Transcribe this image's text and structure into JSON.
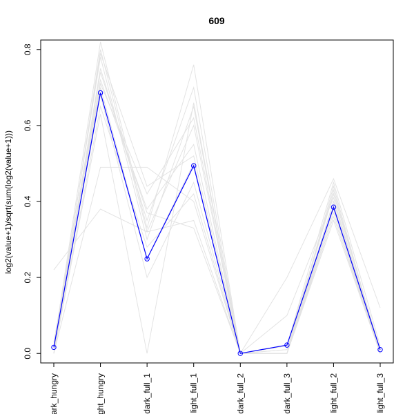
{
  "chart_data": {
    "type": "line",
    "title": "609",
    "xlabel": "",
    "ylabel": "log2(value+1)/sqrt(sum(log2(value+1)))",
    "categories": [
      "dark_hungry",
      "light_hungry",
      "dark_full_1",
      "light_full_1",
      "dark_full_2",
      "dark_full_3",
      "light_full_2",
      "light_full_3"
    ],
    "ylim": [
      -0.025,
      0.825
    ],
    "yticks": [
      0.0,
      0.2,
      0.4,
      0.6,
      0.8
    ],
    "ytick_labels": [
      "0.0",
      "0.2",
      "0.4",
      "0.6",
      "0.8"
    ],
    "grid": false,
    "highlight": {
      "color": "#0000ff",
      "values": [
        0.016,
        0.686,
        0.249,
        0.494,
        0.0,
        0.022,
        0.385,
        0.01
      ]
    },
    "background_color": "#e3e3e3",
    "background_series": [
      [
        0.0,
        0.8,
        0.32,
        0.6,
        0.0,
        0.0,
        0.4,
        0.0
      ],
      [
        0.02,
        0.78,
        0.3,
        0.65,
        0.0,
        0.01,
        0.42,
        0.01
      ],
      [
        0.01,
        0.75,
        0.35,
        0.7,
        0.0,
        0.0,
        0.38,
        0.0
      ],
      [
        0.03,
        0.72,
        0.38,
        0.55,
        0.0,
        0.02,
        0.45,
        0.02
      ],
      [
        0.0,
        0.7,
        0.25,
        0.5,
        0.0,
        0.0,
        0.36,
        0.0
      ],
      [
        0.01,
        0.68,
        0.2,
        0.45,
        0.0,
        0.01,
        0.4,
        0.01
      ],
      [
        0.0,
        0.65,
        0.28,
        0.42,
        0.0,
        0.0,
        0.43,
        0.0
      ],
      [
        0.02,
        0.82,
        0.33,
        0.76,
        0.0,
        0.0,
        0.44,
        0.0
      ],
      [
        0.0,
        0.49,
        0.49,
        0.4,
        0.0,
        0.0,
        0.39,
        0.0
      ],
      [
        0.22,
        0.38,
        0.32,
        0.35,
        0.0,
        0.1,
        0.41,
        0.0
      ],
      [
        0.0,
        0.63,
        0.0,
        0.66,
        0.0,
        0.2,
        0.46,
        0.12
      ],
      [
        0.01,
        0.79,
        0.44,
        0.52,
        0.0,
        0.0,
        0.37,
        0.0
      ],
      [
        0.0,
        0.74,
        0.37,
        0.33,
        0.0,
        0.02,
        0.42,
        0.01
      ],
      [
        0.02,
        0.71,
        0.42,
        0.62,
        0.0,
        0.0,
        0.35,
        0.0
      ]
    ]
  }
}
